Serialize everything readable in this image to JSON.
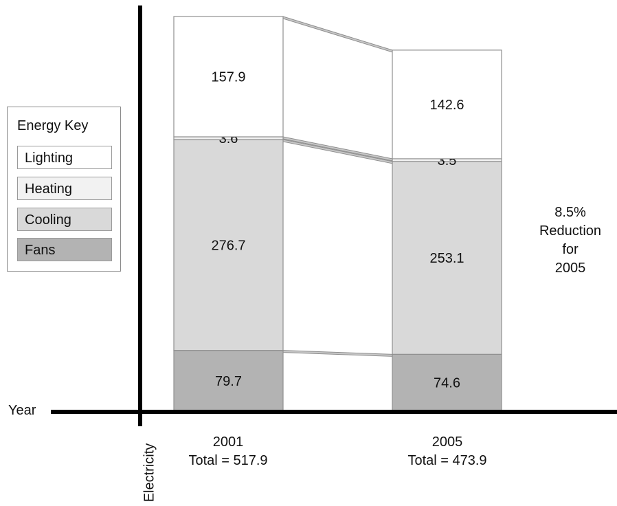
{
  "chart_data": {
    "type": "bar",
    "stacked": true,
    "categories": [
      "2001",
      "2005"
    ],
    "category_totals": [
      "Total = 517.9",
      "Total = 473.9"
    ],
    "series": [
      {
        "name": "Fans",
        "values": [
          79.7,
          74.6
        ],
        "color": "#b3b3b3"
      },
      {
        "name": "Cooling",
        "values": [
          276.7,
          253.1
        ],
        "color": "#d9d9d9"
      },
      {
        "name": "Heating",
        "values": [
          3.6,
          3.5
        ],
        "color": "#f2f2f2"
      },
      {
        "name": "Lighting",
        "values": [
          157.9,
          142.6
        ],
        "color": "#ffffff"
      }
    ],
    "xlabel": "Year",
    "ylabel": "Electricity",
    "legend_title": "Energy Key",
    "legend_position": "left",
    "legend_order": [
      "Lighting",
      "Heating",
      "Cooling",
      "Fans"
    ],
    "annotation": [
      "8.5%",
      "Reduction",
      "for",
      "2005"
    ],
    "ylim": [
      0,
      517.9
    ],
    "grid": false
  }
}
